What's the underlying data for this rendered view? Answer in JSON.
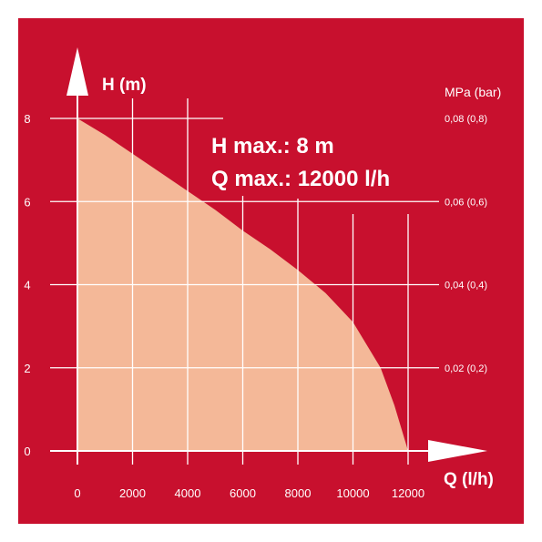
{
  "chart_data": {
    "type": "area",
    "title": "",
    "xlabel": "Q (l/h)",
    "ylabel": "H (m)",
    "y2label": "MPa (bar)",
    "x": [
      0,
      1000,
      2000,
      3000,
      4000,
      5000,
      6000,
      7000,
      8000,
      9000,
      10000,
      11000,
      11500,
      12000
    ],
    "series": [
      {
        "values": [
          8.0,
          7.6,
          7.15,
          6.7,
          6.25,
          5.8,
          5.3,
          4.85,
          4.35,
          3.8,
          3.1,
          2.0,
          1.1,
          0
        ]
      }
    ],
    "x_ticks": [
      "0",
      "2000",
      "4000",
      "6000",
      "8000",
      "10000",
      "12000"
    ],
    "y_ticks": [
      "0",
      "2",
      "4",
      "6",
      "8"
    ],
    "y2_ticks": [
      "0,02 (0,2)",
      "0,04 (0,4)",
      "0,06 (0,6)",
      "0,08 (0,8)"
    ],
    "annotations": [
      "H max.: 8 m",
      "Q max.: 12000 l/h"
    ],
    "xlim": [
      0,
      12000
    ],
    "ylim": [
      0,
      8
    ],
    "grid": true,
    "colors": {
      "background": "#c8102e",
      "fill": "#f4b898",
      "grid": "#ffffff",
      "frame": "#ffffff"
    }
  }
}
